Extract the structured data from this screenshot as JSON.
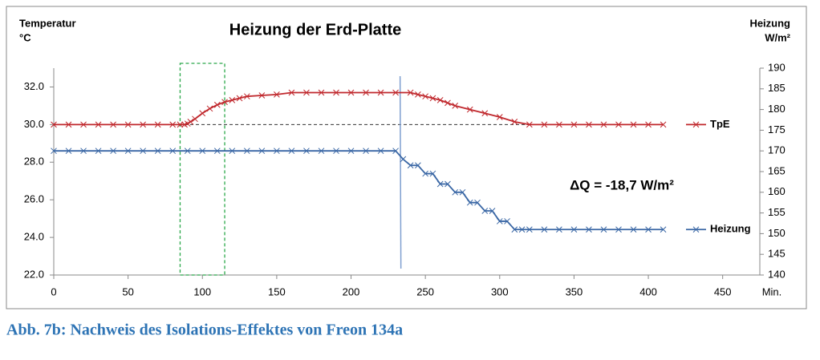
{
  "chart_data": {
    "type": "line",
    "title": "Heizung der Erd-Platte",
    "ylabel": [
      "Temperatur",
      "°C"
    ],
    "y2label": [
      "Heizung",
      "W/m²"
    ],
    "xlabel": "Min.",
    "annotation": "ΔQ = -18,7 W/m²",
    "caption": "Abb. 7b: Nachweis des Isolations-Effektes von Freon 134a",
    "xlim": [
      0,
      475
    ],
    "xticks": [
      0,
      50,
      100,
      150,
      200,
      250,
      300,
      350,
      400,
      450
    ],
    "ylim": [
      22,
      33
    ],
    "yticks": [
      {
        "value": 22,
        "label": "22.0"
      },
      {
        "value": 24,
        "label": "24.0"
      },
      {
        "value": 26,
        "label": "26.0"
      },
      {
        "value": 28,
        "label": "28.0"
      },
      {
        "value": 30,
        "label": "30.0"
      },
      {
        "value": 32,
        "label": "32.0"
      }
    ],
    "y2lim": [
      140,
      190
    ],
    "y2ticks": [
      140,
      145,
      150,
      155,
      160,
      165,
      170,
      175,
      180,
      185,
      190
    ],
    "legend": "right",
    "reference_line": {
      "y": 30,
      "x": [
        88,
        330
      ]
    },
    "highlight_x": [
      85,
      115
    ],
    "vline_x": 233,
    "series": [
      {
        "name": "TpE",
        "color": "#c0282d",
        "x": [
          0,
          10,
          20,
          30,
          40,
          50,
          60,
          70,
          80,
          85,
          88,
          90,
          92,
          95,
          100,
          105,
          110,
          115,
          120,
          125,
          130,
          140,
          150,
          160,
          170,
          180,
          190,
          200,
          210,
          220,
          230,
          240,
          245,
          250,
          255,
          260,
          265,
          270,
          280,
          290,
          300,
          310,
          320,
          330,
          340,
          350,
          360,
          370,
          380,
          390,
          400,
          410
        ],
        "values": [
          30.0,
          30.0,
          30.0,
          30.0,
          30.0,
          30.0,
          30.0,
          30.0,
          30.0,
          30.0,
          30.0,
          30.05,
          30.15,
          30.3,
          30.6,
          30.85,
          31.05,
          31.2,
          31.3,
          31.4,
          31.5,
          31.55,
          31.6,
          31.7,
          31.7,
          31.7,
          31.7,
          31.7,
          31.7,
          31.7,
          31.7,
          31.7,
          31.6,
          31.5,
          31.4,
          31.3,
          31.15,
          31.0,
          30.8,
          30.6,
          30.4,
          30.15,
          30.0,
          30.0,
          30.0,
          30.0,
          30.0,
          30.0,
          30.0,
          30.0,
          30.0,
          30.0
        ]
      },
      {
        "name": "Heizung",
        "color": "#3a67a5",
        "axis": "y2",
        "x": [
          0,
          10,
          20,
          30,
          40,
          50,
          60,
          70,
          80,
          90,
          100,
          110,
          120,
          130,
          140,
          150,
          160,
          170,
          180,
          190,
          200,
          210,
          220,
          230,
          235,
          240,
          245,
          250,
          255,
          260,
          265,
          270,
          275,
          280,
          285,
          290,
          295,
          300,
          305,
          310,
          315,
          320,
          330,
          340,
          350,
          360,
          370,
          380,
          390,
          400,
          410
        ],
        "values": [
          170,
          170,
          170,
          170,
          170,
          170,
          170,
          170,
          170,
          170,
          170,
          170,
          170,
          170,
          170,
          170,
          170,
          170,
          170,
          170,
          170,
          170,
          170,
          170,
          168,
          166.5,
          166.5,
          164.5,
          164.5,
          162,
          162,
          160,
          160,
          157.5,
          157.5,
          155.5,
          155.5,
          153,
          153,
          151,
          151,
          151,
          151,
          151,
          151,
          151,
          151,
          151,
          151,
          151,
          151
        ]
      }
    ]
  }
}
